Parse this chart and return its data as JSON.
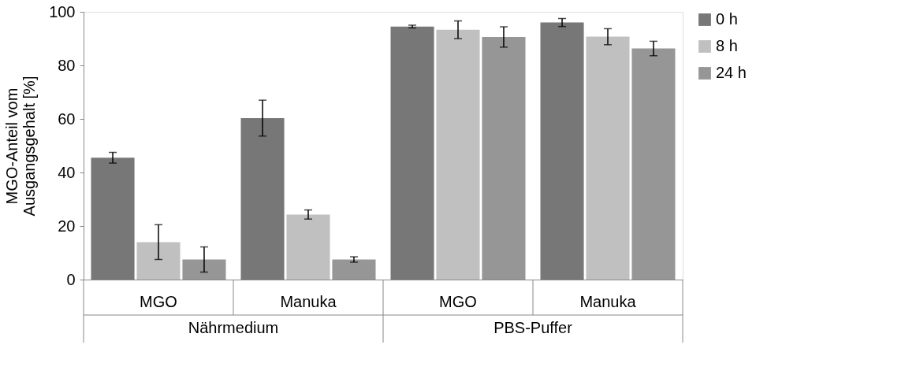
{
  "chart_data": {
    "type": "bar",
    "ylabel": "MGO-Anteil vom Ausgangsgehalt [%]",
    "categories": [
      "MGO",
      "Manuka",
      "MGO",
      "Manuka"
    ],
    "annotations": [
      "Nährmedium",
      "PBS-Puffer"
    ],
    "series": [
      {
        "name": "0 h",
        "color": "#777777",
        "values": [
          45.5,
          60.3,
          94.5,
          96
        ],
        "errors": [
          2,
          6.7,
          0.5,
          1.5
        ]
      },
      {
        "name": "8 h",
        "color": "#c0c0c0",
        "values": [
          14,
          24.3,
          93.3,
          90.7
        ],
        "errors": [
          6.5,
          1.7,
          3.3,
          3
        ]
      },
      {
        "name": "24 h",
        "color": "#969696",
        "values": [
          7.5,
          7.5,
          90.6,
          86.3
        ],
        "errors": [
          4.7,
          1,
          3.8,
          2.7
        ]
      }
    ],
    "ylim": [
      0,
      100
    ],
    "yticks": [
      0,
      20,
      40,
      60,
      80,
      100
    ],
    "grid": false,
    "legend": "right"
  }
}
